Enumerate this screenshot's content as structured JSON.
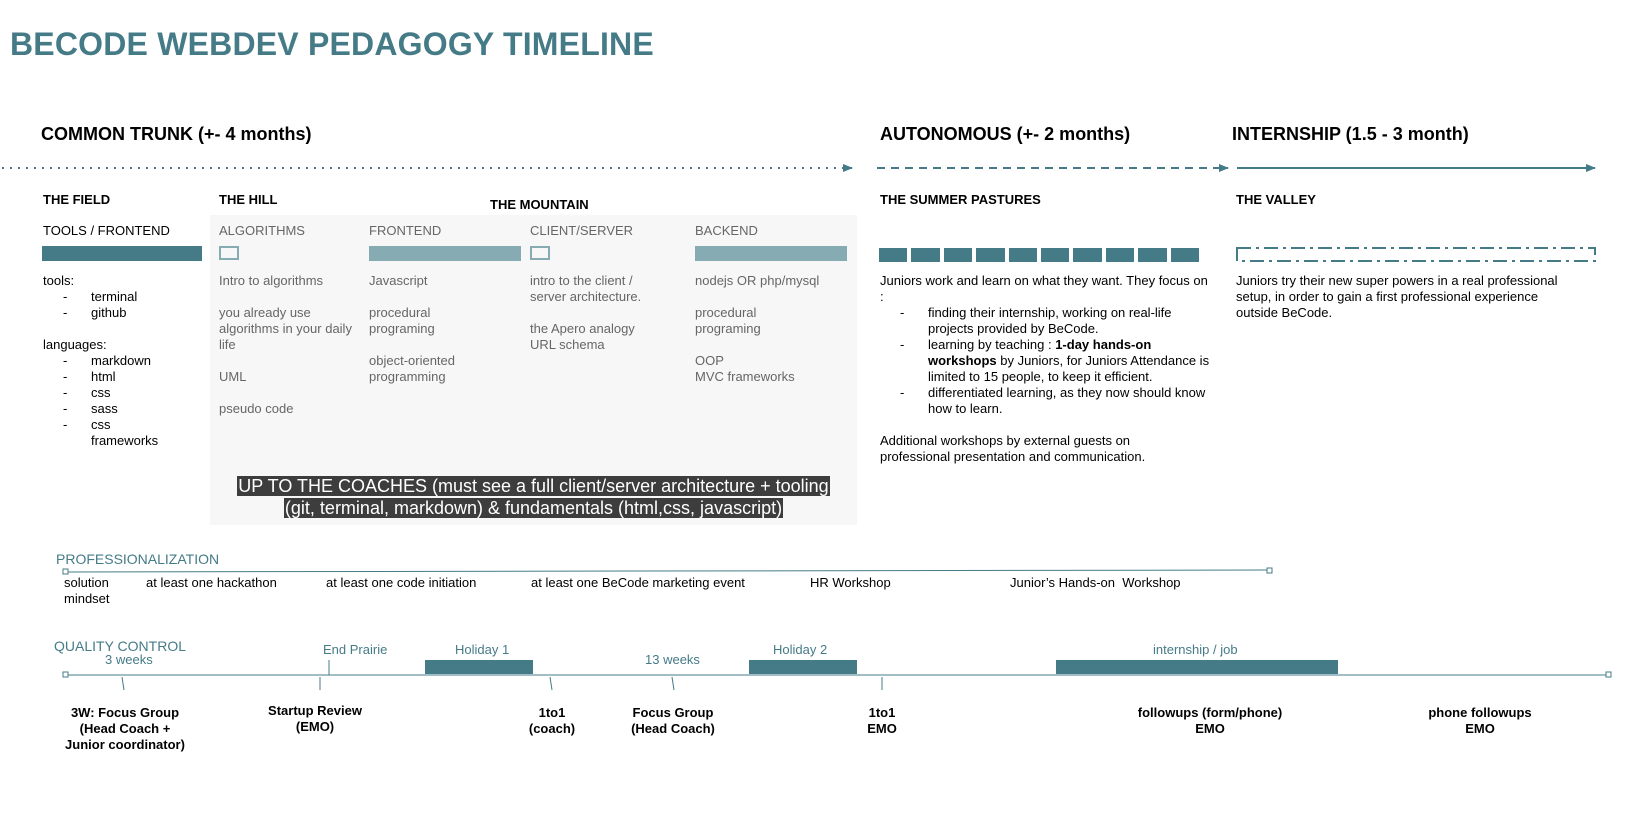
{
  "title": "BECODE WEBDEV PEDAGOGY TIMELINE",
  "colors": {
    "accent": "#457b87",
    "accent_light": "#86abb2",
    "panel_bg": "#f7f7f7",
    "note_bg": "#3d3d3d"
  },
  "phases": {
    "common": "COMMON TRUNK (+- 4 months)",
    "autonomous": "AUTONOMOUS (+- 2 months)",
    "internship": "INTERNSHIP (1.5 - 3 month)"
  },
  "field": {
    "title": "THE FIELD",
    "subtitle": "TOOLS / FRONTEND",
    "tools_label": "tools:",
    "tools": [
      "terminal",
      "github"
    ],
    "languages_label": "languages:",
    "languages": [
      "markdown",
      "html",
      "css",
      "sass",
      "css frameworks"
    ]
  },
  "hill": {
    "title": "THE HILL"
  },
  "mountain": {
    "title": "THE MOUNTAIN"
  },
  "columns": {
    "algorithms": {
      "title": "ALGORITHMS",
      "items": [
        "Intro to algorithms",
        "you already use algorithms in your daily life",
        "UML",
        "pseudo code"
      ]
    },
    "frontend": {
      "title": "FRONTEND",
      "items": [
        "Javascript",
        "procedural programing",
        "object-oriented programming"
      ]
    },
    "clientserver": {
      "title": "CLIENT/SERVER",
      "items": [
        "intro to the client / server architecture.",
        "the Apero analogy",
        "URL schema"
      ]
    },
    "backend": {
      "title": "BACKEND",
      "items": [
        "nodejs OR php/mysql",
        "procedural programing",
        "OOP",
        "MVC frameworks"
      ]
    }
  },
  "coaches_note": {
    "line1": "UP TO THE COACHES (must see a full client/server architecture + tooling",
    "line2": "(git, terminal, markdown) & fundamentals (html,css, javascript)"
  },
  "summer": {
    "title": "THE SUMMER PASTURES",
    "intro": "Juniors work and learn on what they want. They focus on :",
    "bullet1": "finding their internship, working on real-life projects provided by BeCode.",
    "bullet2_pre": "learning by teaching : ",
    "bullet2_bold": "1-day hands-on workshops",
    "bullet2_post": " by Juniors, for Juniors Attendance is limited to 15 people, to keep it efficient.",
    "bullet3": "differentiated learning, as they now should know how to learn.",
    "extra": "Additional workshops by external guests on professional presentation and communication."
  },
  "valley": {
    "title": "THE VALLEY",
    "text": "Juniors try their new super powers in a real professional setup, in order to gain a first professional experience outside BeCode."
  },
  "professionalization": {
    "label": "PROFESSIONALIZATION",
    "items": [
      "solution mindset",
      "at least one hackathon",
      "at least one code initiation",
      "at least one BeCode marketing event",
      "HR Workshop",
      "Junior’s Hands-on  Workshop"
    ]
  },
  "quality": {
    "label": "QUALITY CONTROL",
    "top_labels": {
      "w3": "3 weeks",
      "end_prairie": "End Prairie",
      "holiday1": "Holiday 1",
      "w13": "13 weeks",
      "holiday2": "Holiday 2",
      "internship": "internship / job"
    },
    "events": {
      "focus1": [
        "3W: Focus Group",
        "(Head Coach +",
        "Junior coordinator)"
      ],
      "startup": [
        "Startup Review",
        "(EMO)"
      ],
      "oneto1coach": [
        "1to1",
        "(coach)"
      ],
      "focus2": [
        "Focus Group",
        "(Head Coach)"
      ],
      "oneto1emo": [
        "1to1",
        "EMO"
      ],
      "followups": [
        "followups (form/phone)",
        "EMO"
      ],
      "phone": [
        "phone followups",
        "EMO"
      ]
    }
  }
}
